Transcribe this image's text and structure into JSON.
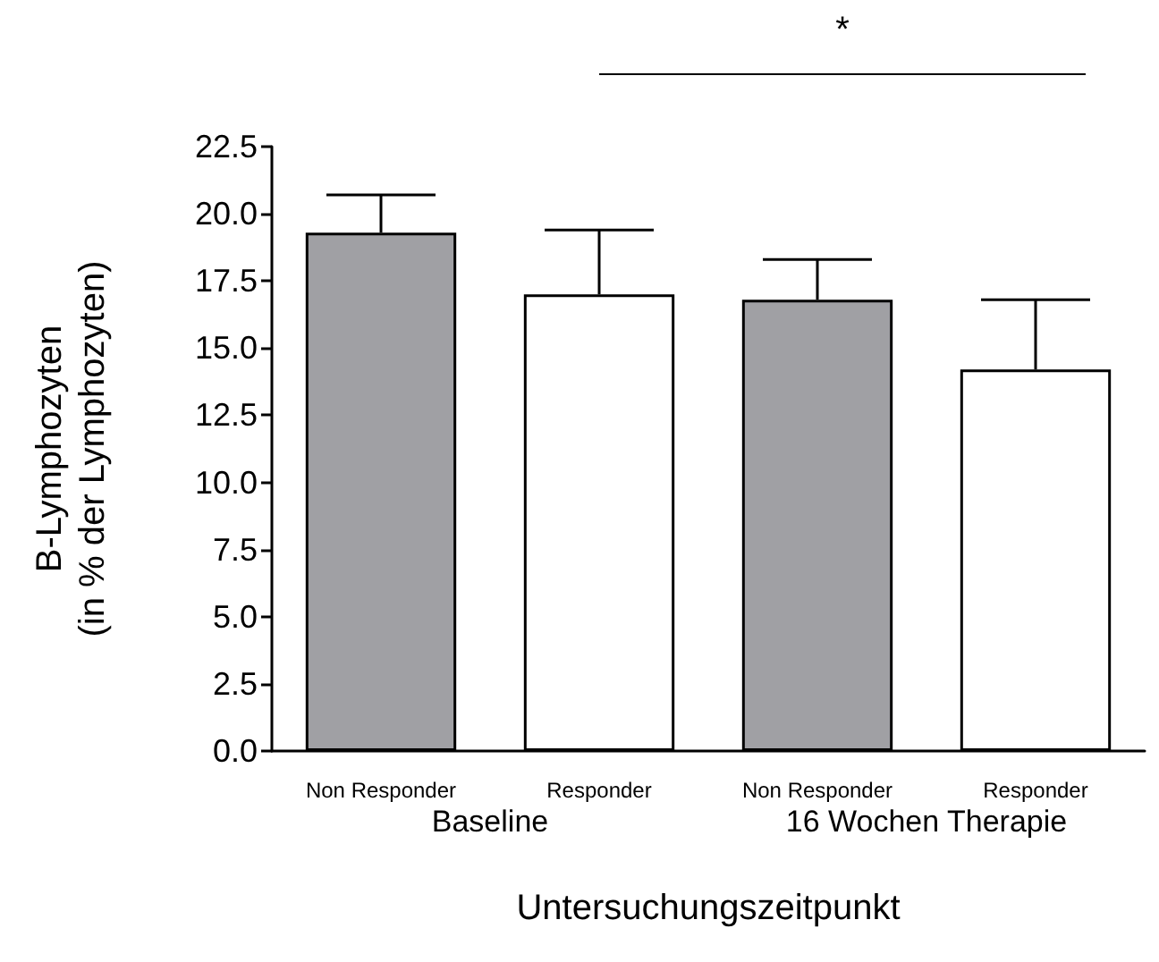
{
  "chart_data": {
    "type": "bar",
    "ylabel": "B-Lymphozyten\n(in % der Lymphozyten)",
    "xlabel": "Untersuchungszeitpunkt",
    "categories": [
      "Non Responder",
      "Responder",
      "Non Responder",
      "Responder"
    ],
    "values": [
      19.3,
      17.0,
      16.8,
      14.2
    ],
    "colors": [
      "#a0a0a4",
      "#ffffff",
      "#a0a0a4",
      "#ffffff"
    ],
    "errors": [
      [
        19.3,
        20.7
      ],
      [
        17.0,
        19.4
      ],
      [
        16.8,
        18.3
      ],
      [
        14.2,
        16.8
      ]
    ],
    "ylim": [
      0,
      22.5
    ],
    "yticks": [
      {
        "value": 0,
        "label": "0.0"
      },
      2.5,
      {
        "value": 5,
        "label": "5.0"
      },
      7.5,
      {
        "value": 10,
        "label": "10.0"
      },
      12.5,
      {
        "value": 15,
        "label": "15.0"
      },
      17.5,
      {
        "value": 20,
        "label": "20.0"
      },
      22.5
    ],
    "grid": false,
    "annotations": [
      "Baseline",
      "16 Wochen Therapie",
      "*"
    ]
  }
}
